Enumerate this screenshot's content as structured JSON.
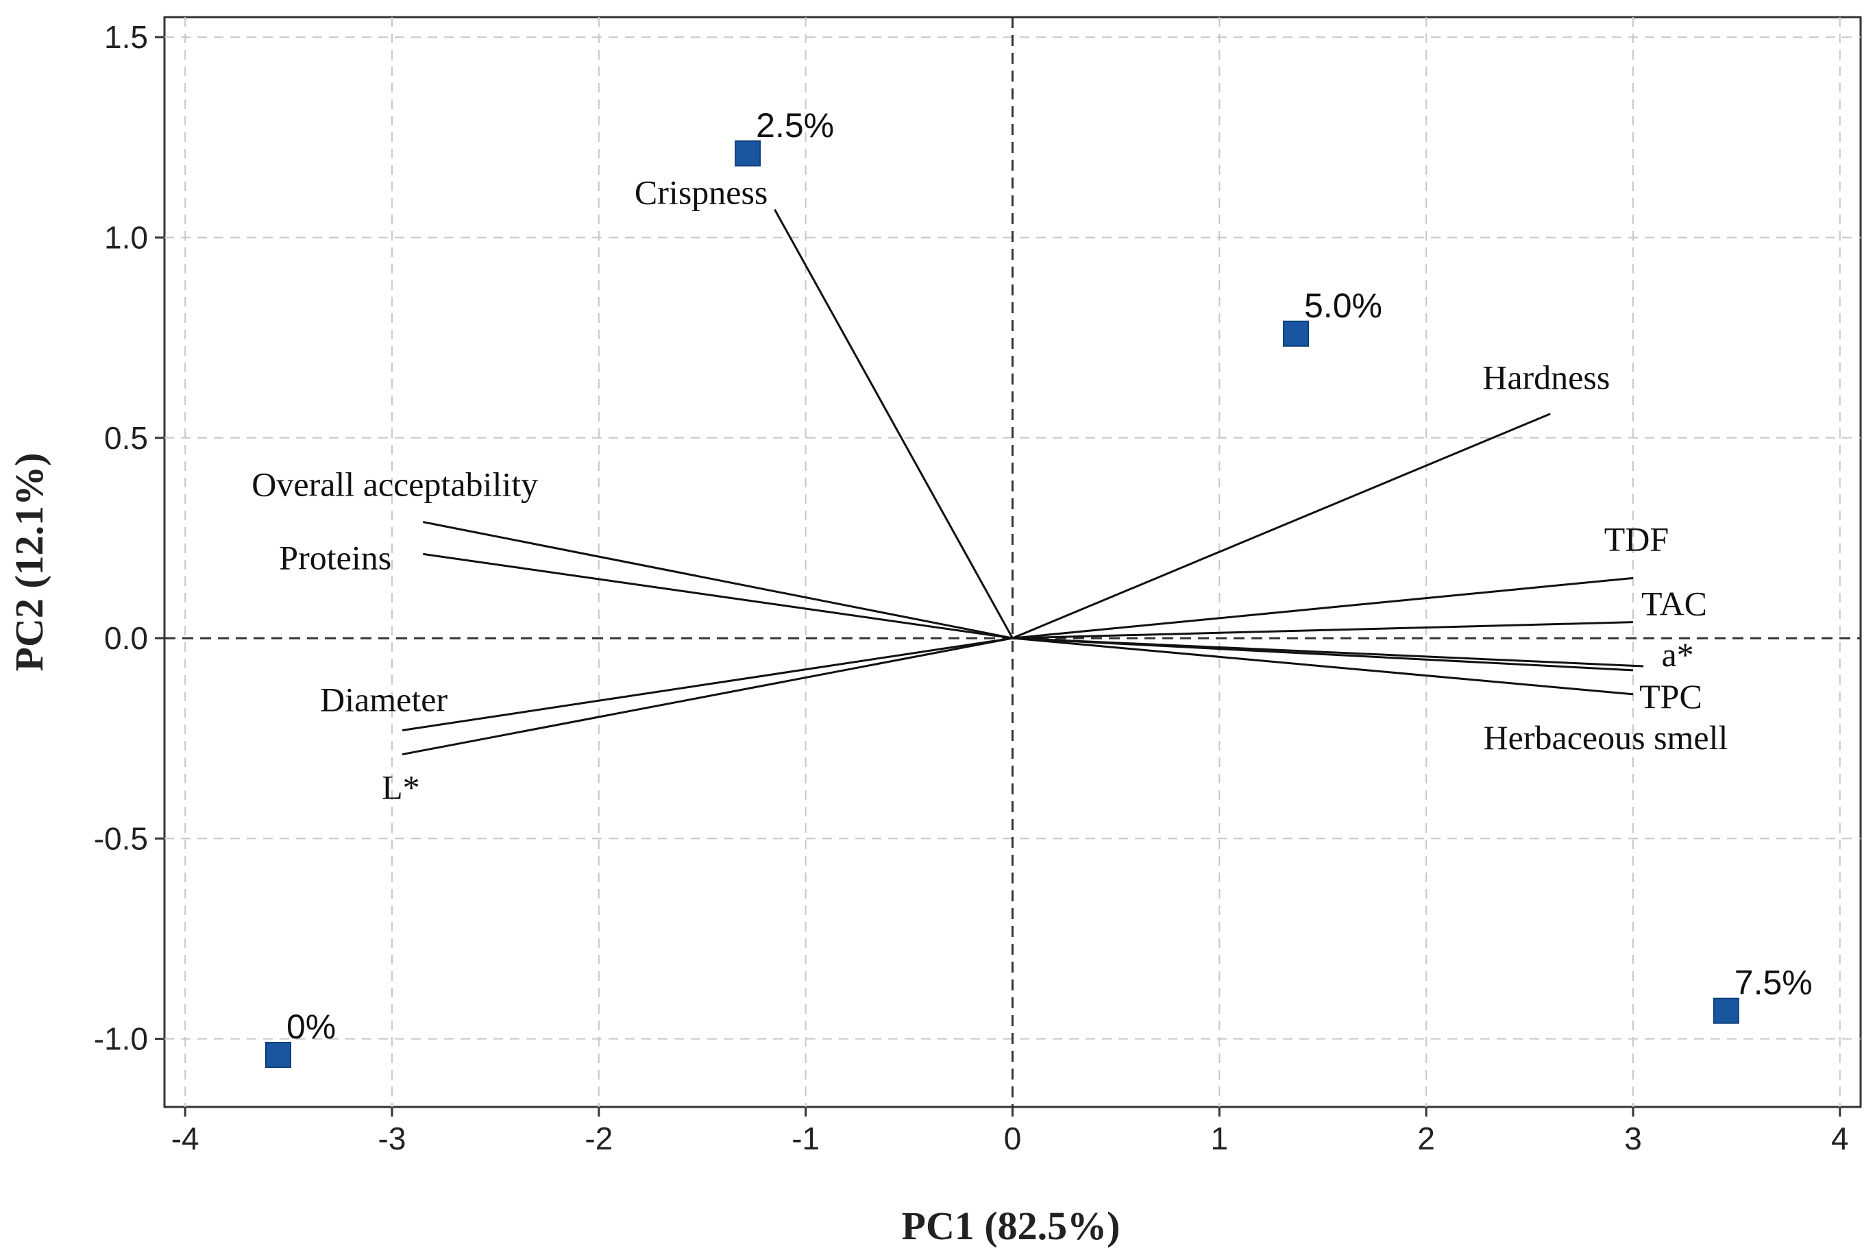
{
  "chart_data": {
    "type": "scatter",
    "subtype": "biplot",
    "title": "",
    "xlabel": "PC1 (82.5%)",
    "ylabel": "PC2 (12.1%)",
    "xlim": [
      -4.1,
      4.1
    ],
    "ylim": [
      -1.17,
      1.55
    ],
    "xticks": [
      -4,
      -3,
      -2,
      -1,
      0,
      1,
      2,
      3,
      4
    ],
    "yticks": [
      1.5,
      1.0,
      0.5,
      0.0,
      -0.5,
      -1.0
    ],
    "xtick_labels": [
      "-4",
      "-3",
      "-2",
      "-1",
      "0",
      "1",
      "2",
      "3",
      "4"
    ],
    "ytick_labels": [
      "1.5",
      "1.0",
      "0.5",
      "0.0",
      "-0.5",
      "-1.0"
    ],
    "grid": true,
    "point_color": "#1a56a0",
    "line_color": "#111111",
    "points": [
      {
        "label": "0%",
        "x": -3.55,
        "y": -1.04
      },
      {
        "label": "2.5%",
        "x": -1.28,
        "y": 1.21
      },
      {
        "label": "5.0%",
        "x": 1.37,
        "y": 0.76
      },
      {
        "label": "7.5%",
        "x": 3.45,
        "y": -0.93
      }
    ],
    "vectors": [
      {
        "label": "Crispness",
        "x": -1.15,
        "y": 1.07
      },
      {
        "label": "Hardness",
        "x": 2.6,
        "y": 0.56
      },
      {
        "label": "Overall acceptability",
        "x": -2.85,
        "y": 0.29
      },
      {
        "label": "Proteins",
        "x": -2.85,
        "y": 0.21
      },
      {
        "label": "TDF",
        "x": 3.0,
        "y": 0.15
      },
      {
        "label": "TAC",
        "x": 3.0,
        "y": 0.04
      },
      {
        "label": "a*",
        "x": 3.05,
        "y": -0.07
      },
      {
        "label": "TPC",
        "x": 3.0,
        "y": -0.14
      },
      {
        "label": "Herbaceous smell",
        "x": 3.0,
        "y": -0.08
      },
      {
        "label": "Diameter",
        "x": -2.95,
        "y": -0.23
      },
      {
        "label": "L*",
        "x": -2.95,
        "y": -0.29
      }
    ]
  }
}
